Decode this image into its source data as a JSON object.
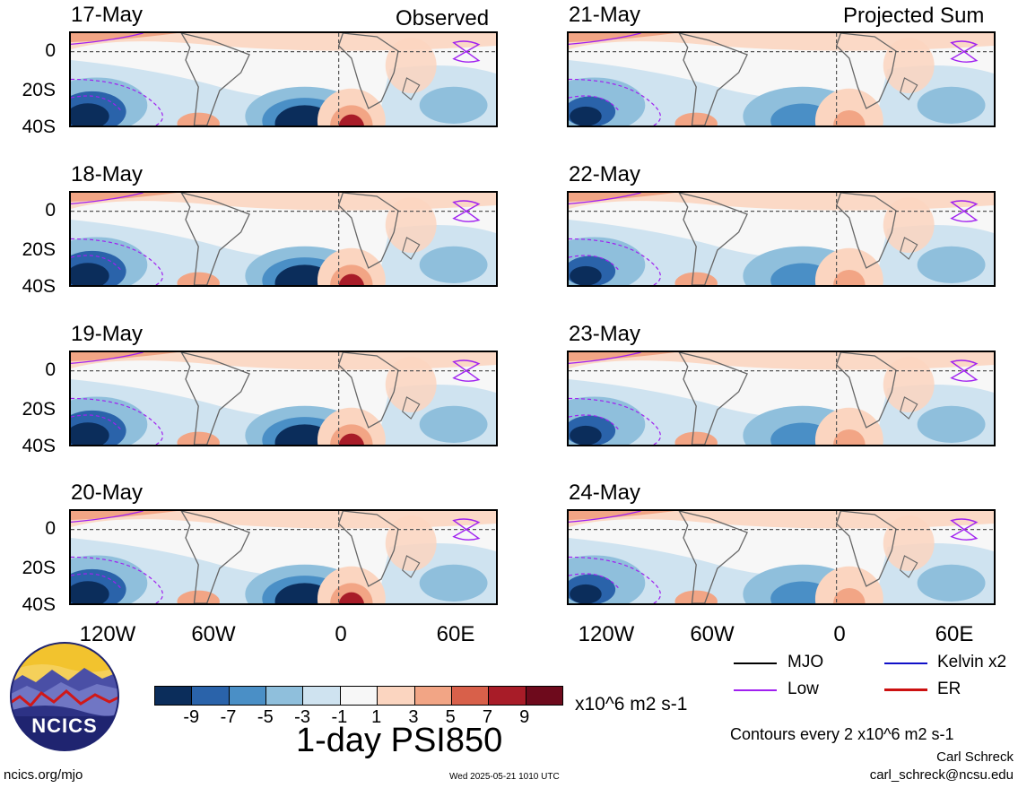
{
  "headings": {
    "left": "Observed",
    "right": "Projected Sum"
  },
  "panels": {
    "left": [
      "17-May",
      "18-May",
      "19-May",
      "20-May"
    ],
    "right": [
      "21-May",
      "22-May",
      "23-May",
      "24-May"
    ]
  },
  "lat_labels": [
    "0",
    "20S",
    "40S"
  ],
  "lon_labels": [
    "120W",
    "60W",
    "0",
    "60E"
  ],
  "colorbar": {
    "ticks": [
      "-9",
      "-7",
      "-5",
      "-3",
      "-1",
      "1",
      "3",
      "5",
      "7",
      "9"
    ],
    "units": "x10^6 m2 s-1",
    "colors": [
      "#0b2d5b",
      "#2a63aa",
      "#4a8fc6",
      "#8fbfdc",
      "#cfe3f0",
      "#f7f7f7",
      "#fbd5c0",
      "#f2a585",
      "#d8604a",
      "#a81c28",
      "#6e0a1c"
    ]
  },
  "title": "1-day PSI850",
  "logo": {
    "text": "NCICS"
  },
  "legend": {
    "items": [
      {
        "label": "MJO",
        "color": "#000000"
      },
      {
        "label": "Kelvin x2",
        "color": "#1010c8"
      },
      {
        "label": "Low",
        "color": "#a020f0"
      },
      {
        "label": "ER",
        "color": "#cc1010"
      }
    ],
    "contours_note": "Contours every 2 x10^6 m2 s-1"
  },
  "credits": {
    "author": "Carl Schreck",
    "email": "carl_schreck@ncsu.edu"
  },
  "footer": {
    "site": "ncics.org/mjo",
    "timestamp": "Wed 2025-05-21 1010 UTC"
  }
}
